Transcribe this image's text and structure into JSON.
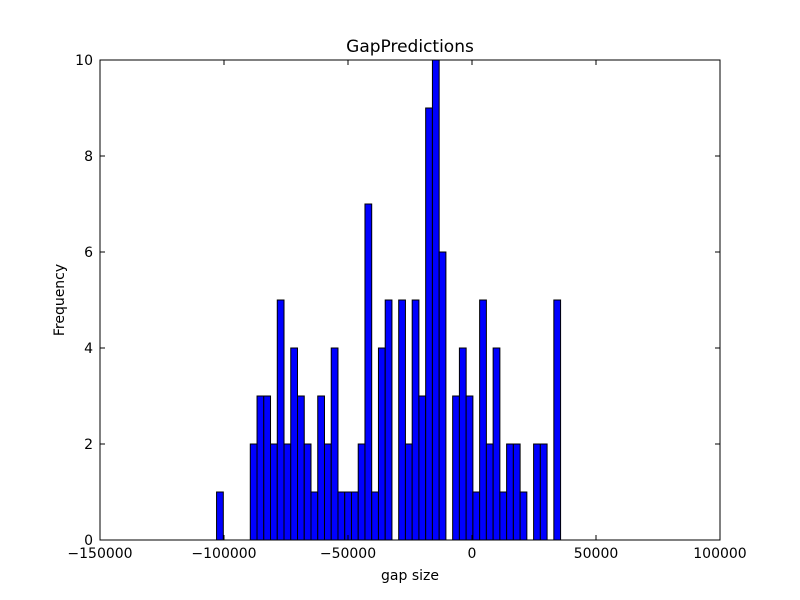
{
  "chart_data": {
    "type": "bar",
    "title": "GapPredictions",
    "xlabel": "gap size",
    "ylabel": "Frequency",
    "xlim": [
      -150000,
      100000
    ],
    "ylim": [
      0,
      10
    ],
    "xticks": [
      -150000,
      -100000,
      -50000,
      0,
      50000,
      100000
    ],
    "xtick_labels": [
      "−150000",
      "−100000",
      "−50000",
      "0",
      "50000",
      "100000"
    ],
    "yticks": [
      0,
      2,
      4,
      6,
      8,
      10
    ],
    "ytick_labels": [
      "0",
      "2",
      "4",
      "6",
      "8",
      "10"
    ],
    "bar_color": "#0000ff",
    "edge_color": "#000000",
    "grid": false,
    "bin_start": -103000,
    "bin_width": 2720,
    "values": [
      1,
      0,
      0,
      0,
      0,
      2,
      3,
      3,
      2,
      5,
      2,
      4,
      3,
      2,
      1,
      3,
      2,
      4,
      1,
      1,
      1,
      2,
      7,
      1,
      4,
      5,
      0,
      5,
      2,
      5,
      3,
      9,
      10,
      6,
      0,
      3,
      4,
      3,
      1,
      5,
      2,
      4,
      1,
      2,
      2,
      1,
      0,
      2,
      2,
      0,
      5
    ]
  }
}
